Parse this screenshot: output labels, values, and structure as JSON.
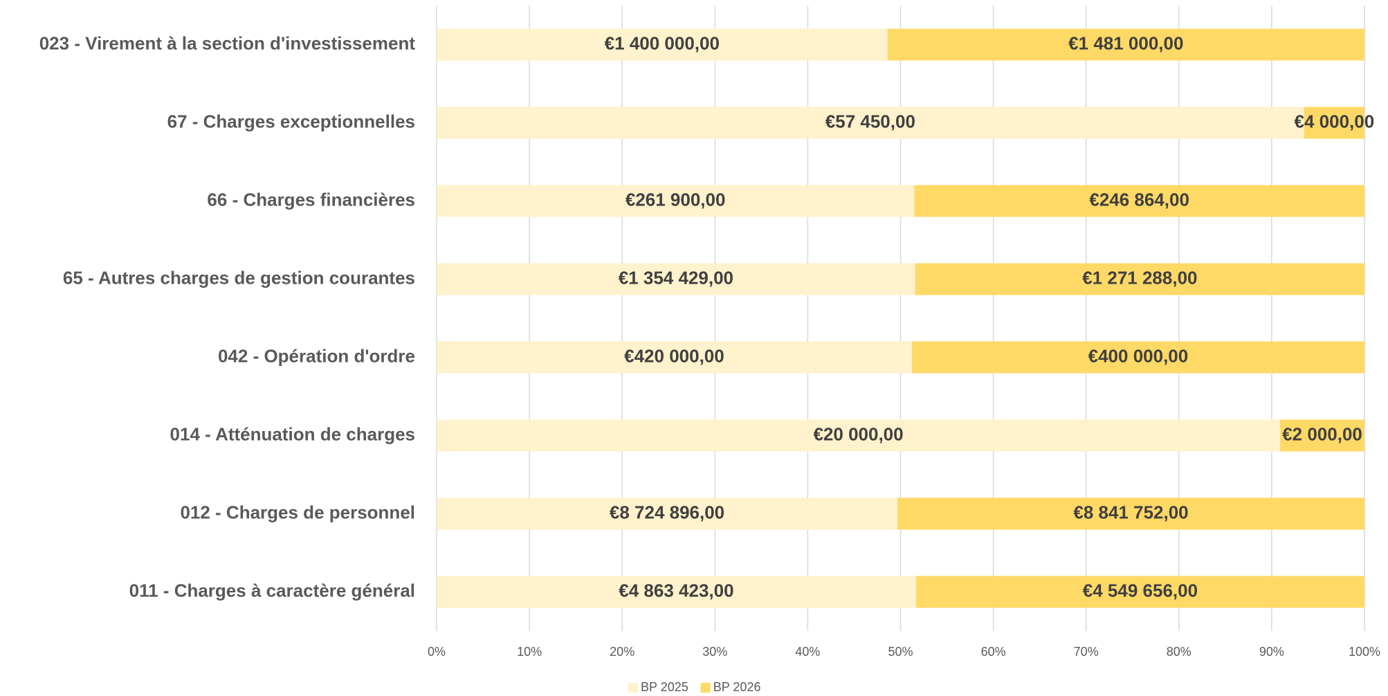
{
  "chart_data": {
    "type": "bar",
    "orientation": "horizontal",
    "stacked_percent": true,
    "categories": [
      "023 - Virement à la section d'investissement",
      "67 - Charges exceptionnelles",
      "66 - Charges financières",
      "65 - Autres charges de gestion courantes",
      "042 - Opération d'ordre",
      "014 - Atténuation de charges",
      "012 - Charges de personnel",
      "011 - Charges à caractère général"
    ],
    "series": [
      {
        "name": "BP 2025",
        "color": "#FFF2CC",
        "values": [
          1400000,
          57450,
          261900,
          1354429,
          420000,
          20000,
          8724896,
          4863423
        ],
        "value_labels": [
          "€1 400 000,00",
          "€57 450,00",
          "€261 900,00",
          "€1 354 429,00",
          "€420 000,00",
          "€20 000,00",
          "€8 724 896,00",
          "€4 863 423,00"
        ]
      },
      {
        "name": "BP 2026",
        "color": "#FFD966",
        "values": [
          1481000,
          4000,
          246864,
          1271288,
          400000,
          2000,
          8841752,
          4549656
        ],
        "value_labels": [
          "€1 481 000,00",
          "€4 000,00",
          "€246 864,00",
          "€1 271 288,00",
          "€400 000,00",
          "€2 000,00",
          "€8 841 752,00",
          "€4 549 656,00"
        ]
      }
    ],
    "xlim": [
      0,
      100
    ],
    "xticks": [
      {
        "value": 0,
        "label": "0%"
      },
      {
        "value": 10,
        "label": "10%"
      },
      {
        "value": 20,
        "label": "20%"
      },
      {
        "value": 30,
        "label": "30%"
      },
      {
        "value": 40,
        "label": "40%"
      },
      {
        "value": 50,
        "label": "50%"
      },
      {
        "value": 60,
        "label": "60%"
      },
      {
        "value": 70,
        "label": "70%"
      },
      {
        "value": 80,
        "label": "80%"
      },
      {
        "value": 90,
        "label": "90%"
      },
      {
        "value": 100,
        "label": "100%"
      }
    ],
    "grid": true,
    "legend": "bottom"
  }
}
